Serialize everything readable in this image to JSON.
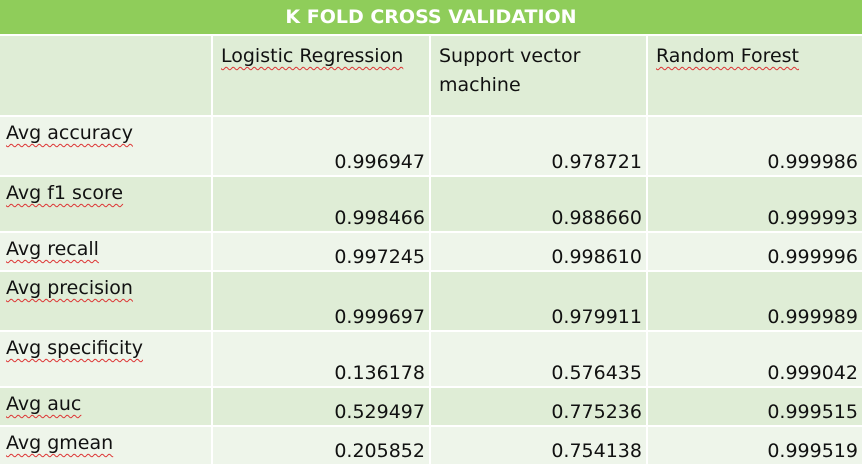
{
  "title": "K FOLD CROSS VALIDATION",
  "columns": [
    "Logistic Regression",
    "Support vector machine",
    "Random Forest"
  ],
  "rows": [
    {
      "label": "Avg accuracy",
      "values": [
        "0.996947",
        "0.978721",
        "0.999986"
      ]
    },
    {
      "label": "Avg f1 score",
      "values": [
        "0.998466",
        "0.988660",
        "0.999993"
      ]
    },
    {
      "label": "Avg recall",
      "values": [
        "0.997245",
        "0.998610",
        "0.999996"
      ]
    },
    {
      "label": "Avg precision",
      "values": [
        "0.999697",
        "0.979911",
        "0.999989"
      ]
    },
    {
      "label": "Avg specificity",
      "values": [
        "0.136178",
        "0.576435",
        "0.999042"
      ]
    },
    {
      "label": "Avg auc",
      "values": [
        "0.529497",
        "0.775236",
        "0.999515"
      ]
    },
    {
      "label": "Avg gmean",
      "values": [
        "0.205852",
        "0.754138",
        "0.999519"
      ]
    }
  ]
}
